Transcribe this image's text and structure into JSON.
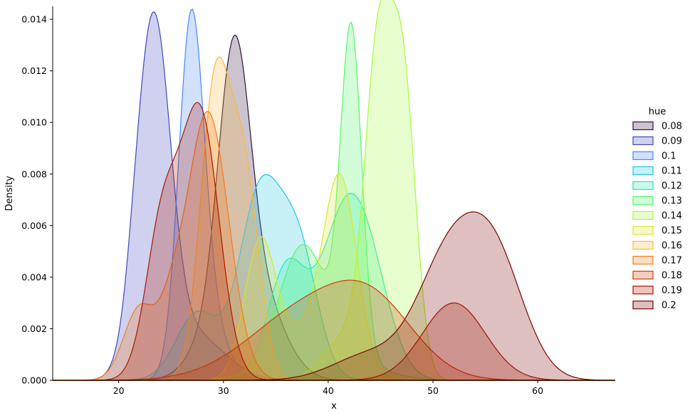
{
  "chart_data": {
    "type": "area",
    "xlabel": "x",
    "ylabel": "Density",
    "xlim": [
      13.7,
      67.4
    ],
    "ylim": [
      0,
      0.0145
    ],
    "x_ticks": [
      20,
      30,
      40,
      50,
      60
    ],
    "y_ticks": [
      0.0,
      0.002,
      0.004,
      0.006,
      0.008,
      0.01,
      0.012,
      0.014
    ],
    "x_tick_labels": [
      "20",
      "30",
      "40",
      "50",
      "60"
    ],
    "y_tick_labels": [
      "0.000",
      "0.002",
      "0.004",
      "0.006",
      "0.008",
      "0.010",
      "0.012",
      "0.014"
    ],
    "grid": false,
    "legend": {
      "title": "hue",
      "placement": "center-right outside",
      "entries": [
        "0.08",
        "0.09",
        "0.1",
        "0.11",
        "0.12",
        "0.13",
        "0.14",
        "0.15",
        "0.16",
        "0.17",
        "0.18",
        "0.19",
        "0.2"
      ]
    },
    "series": [
      {
        "name": "0.08",
        "color": "#30123b",
        "bumps": [
          [
            31.0,
            1.5,
            0.0102
          ],
          [
            33.0,
            2.5,
            0.0036
          ],
          [
            28.5,
            2.0,
            0.0012
          ]
        ]
      },
      {
        "name": "0.09",
        "color": "#3e49bb",
        "bumps": [
          [
            23.3,
            1.6,
            0.0134
          ],
          [
            21.5,
            0.8,
            0.0006
          ],
          [
            27.0,
            3.0,
            0.0018
          ]
        ]
      },
      {
        "name": "0.1",
        "color": "#4687fb",
        "bumps": [
          [
            26.9,
            1.2,
            0.0132
          ],
          [
            28.7,
            1.6,
            0.0022
          ]
        ]
      },
      {
        "name": "0.11",
        "color": "#1fc8de",
        "bumps": [
          [
            27.5,
            2.0,
            0.0026
          ],
          [
            33.5,
            2.0,
            0.0072
          ],
          [
            37.2,
            1.8,
            0.0048
          ]
        ]
      },
      {
        "name": "0.12",
        "color": "#25ebb0",
        "bumps": [
          [
            36.0,
            1.8,
            0.0042
          ],
          [
            41.8,
            2.5,
            0.0066
          ],
          [
            44.5,
            2.0,
            0.0014
          ]
        ]
      },
      {
        "name": "0.13",
        "color": "#51f866",
        "bumps": [
          [
            42.2,
            1.0,
            0.0125
          ],
          [
            37.5,
            2.2,
            0.0042
          ],
          [
            39.5,
            4.0,
            0.0012
          ]
        ]
      },
      {
        "name": "0.14",
        "color": "#a2fc3c",
        "bumps": [
          [
            44.8,
            1.3,
            0.0125
          ],
          [
            47.2,
            1.2,
            0.0108
          ],
          [
            41.5,
            2.0,
            0.0016
          ]
        ]
      },
      {
        "name": "0.15",
        "color": "#d9e734",
        "bumps": [
          [
            33.5,
            1.5,
            0.0052
          ],
          [
            41.2,
            1.6,
            0.0072
          ],
          [
            38.0,
            2.5,
            0.0018
          ]
        ]
      },
      {
        "name": "0.16",
        "color": "#fdb83b",
        "bumps": [
          [
            29.2,
            1.4,
            0.0112
          ],
          [
            32.0,
            1.4,
            0.0078
          ]
        ]
      },
      {
        "name": "0.17",
        "color": "#f47a1c",
        "bumps": [
          [
            28.5,
            2.0,
            0.0104
          ],
          [
            22.0,
            1.5,
            0.0028
          ],
          [
            25.0,
            1.2,
            0.0018
          ]
        ]
      },
      {
        "name": "0.18",
        "color": "#d23c05",
        "bumps": [
          [
            38.0,
            5.5,
            0.0027
          ],
          [
            44.5,
            4.0,
            0.0022
          ]
        ]
      },
      {
        "name": "0.19",
        "color": "#aa1701",
        "bumps": [
          [
            27.8,
            1.8,
            0.0102
          ],
          [
            24.2,
            1.6,
            0.006
          ],
          [
            52.0,
            3.0,
            0.003
          ]
        ]
      },
      {
        "name": "0.2",
        "color": "#7a0403",
        "bumps": [
          [
            51.5,
            3.0,
            0.0045
          ],
          [
            56.0,
            2.8,
            0.0043
          ],
          [
            44.0,
            3.5,
            0.001
          ]
        ]
      }
    ]
  }
}
